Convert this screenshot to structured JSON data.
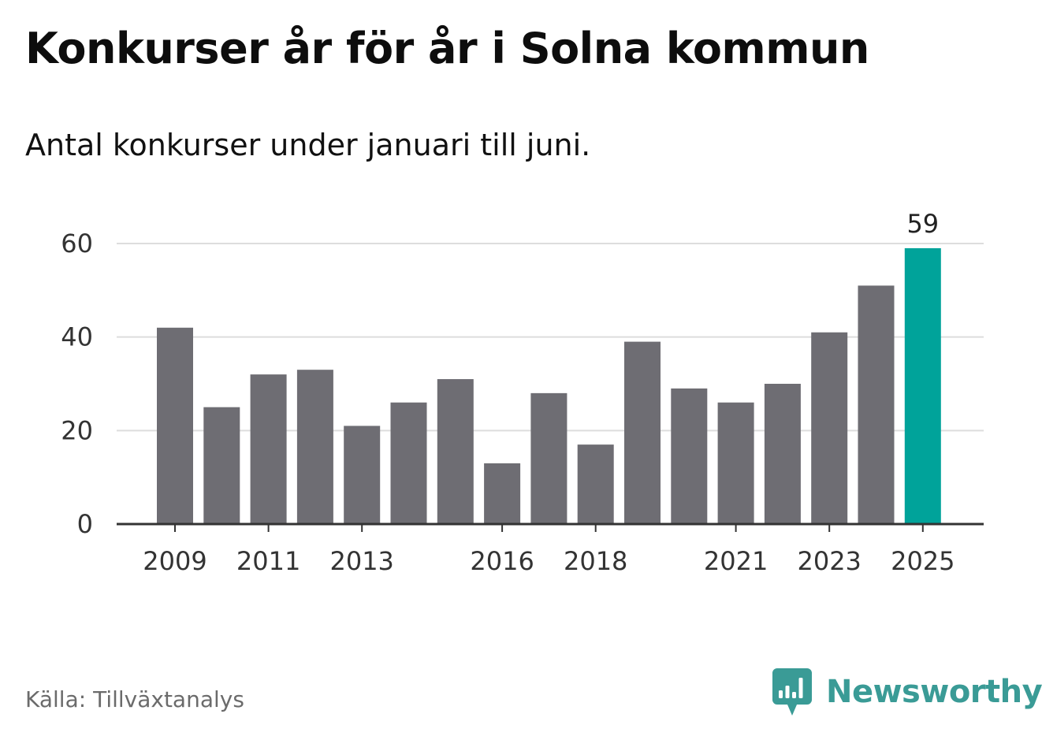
{
  "header": {
    "title": "Konkurser år för år i Solna kommun",
    "subtitle": "Antal konkurser under januari till juni."
  },
  "footer": {
    "source": "Källa: Tillväxtanalys",
    "brand": "Newsworthy",
    "brand_icon": "newsworthy-logo-icon"
  },
  "colors": {
    "bar": "#6e6d73",
    "highlight": "#00a39a",
    "grid": "#dddddd",
    "axis": "#333333",
    "brand": "#3a9b96"
  },
  "chart_data": {
    "type": "bar",
    "title": "Konkurser år för år i Solna kommun",
    "subtitle": "Antal konkurser under januari till juni.",
    "xlabel": "",
    "ylabel": "",
    "categories": [
      "2009",
      "2010",
      "2011",
      "2012",
      "2013",
      "2014",
      "2015",
      "2016",
      "2017",
      "2018",
      "2019",
      "2020",
      "2021",
      "2022",
      "2023",
      "2024",
      "2025"
    ],
    "values": [
      42,
      25,
      32,
      33,
      21,
      26,
      31,
      13,
      28,
      17,
      39,
      29,
      26,
      30,
      41,
      51,
      59
    ],
    "x_tick_labels": [
      "2009",
      "2011",
      "2013",
      "2016",
      "2018",
      "2021",
      "2023",
      "2025"
    ],
    "y_ticks": [
      0,
      20,
      40,
      60
    ],
    "ylim": [
      0,
      60
    ],
    "grid": true,
    "highlight": {
      "category": "2025",
      "label": "59"
    }
  }
}
